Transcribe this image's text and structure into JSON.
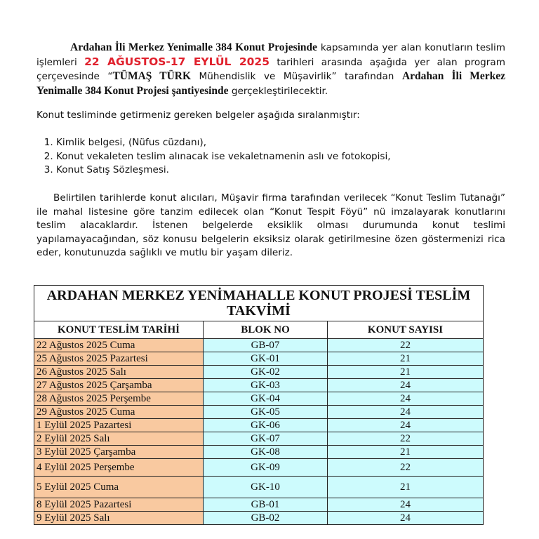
{
  "intro": {
    "b1": "Ardahan İli Merkez Yenimalle 384 Konut Projesinde",
    "t1": " kapsamında yer alan konutların teslim işlemleri ",
    "red": "22 AĞUSTOS-17 EYLÜL 2025",
    "t2": " tarihleri arasında aşağıda yer alan program çerçevesinde “",
    "b2": "TÜMAŞ TÜRK",
    "t3": " Mühendislik ve Müşavirlik” tarafından ",
    "b3": "Ardahan İli Merkez Yenimalle 384 Konut Projesi şantiyesinde",
    "t4": " gerçekleştirilecektir."
  },
  "docs_heading": "Konut tesliminde getirmeniz gereken belgeler aşağıda sıralanmıştır:",
  "docs": [
    "Kimlik belgesi, (Nüfus cüzdanı),",
    "Konut vekaleten teslim alınacak ise vekaletnamenin aslı ve fotokopisi,",
    "Konut Satış Sözleşmesi."
  ],
  "closing": "Belirtilen tarihlerde konut alıcıları, Müşavir firma tarafından verilecek “Konut Teslim Tutanağı” ile mahal listesine göre tanzim edilecek olan “Konut Tespit Föyü”  nü imzalayarak konutlarını teslim alacaklardır.  İstenen belgelerde eksiklik olması durumunda konut teslimi yapılamayacağından, söz konusu   belgelerin eksiksiz olarak getirilmesine özen göstermenizi rica eder, konutunuzda sağlıklı ve mutlu bir yaşam dileriz.",
  "table": {
    "title": "ARDAHAN MERKEZ YENİMAHALLE KONUT PROJESİ  TESLİM TAKVİMİ",
    "headers": [
      "KONUT TESLİM TARİHİ",
      "BLOK NO",
      "KONUT SAYISI"
    ],
    "rows": [
      [
        "22 Ağustos 2025 Cuma",
        "GB-07",
        "22"
      ],
      [
        "25 Ağustos 2025 Pazartesi",
        "GK-01",
        "21"
      ],
      [
        "26 Ağustos 2025 Salı",
        "GK-02",
        "21"
      ],
      [
        "27 Ağustos 2025 Çarşamba",
        "GK-03",
        "24"
      ],
      [
        "28 Ağustos 2025 Perşembe",
        "GK-04",
        "24"
      ],
      [
        "29 Ağustos 2025 Cuma",
        "GK-05",
        "24"
      ],
      [
        "1 Eylül 2025 Pazartesi",
        "GK-06",
        "24"
      ],
      [
        "2 Eylül 2025 Salı",
        "GK-07",
        "22"
      ],
      [
        "3 Eylül 2025 Çarşamba",
        "GK-08",
        "21"
      ],
      [
        "4 Eylül 2025 Perşembe",
        "GK-09",
        "22"
      ],
      [
        "5 Eylül 2025 Cuma",
        "GK-10",
        "21"
      ],
      [
        "8 Eylül 2025 Pazartesi",
        "GB-01",
        "24"
      ],
      [
        "9 Eylül 2025 Salı",
        "GB-02",
        "24"
      ]
    ],
    "colors": {
      "date_col": "#f9c9a0",
      "data_cols": "#cdfbfd"
    }
  }
}
